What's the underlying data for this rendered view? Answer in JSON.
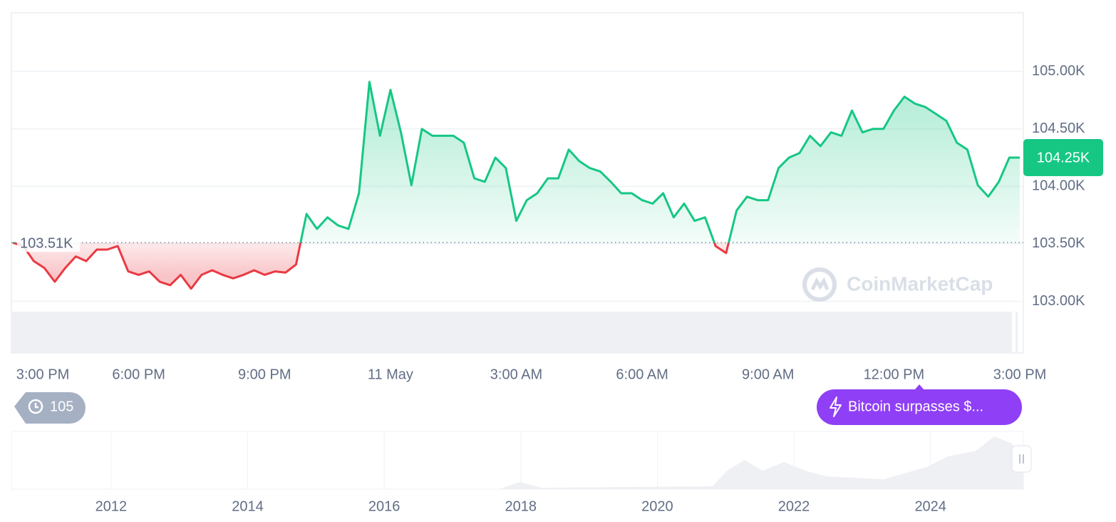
{
  "chart_data": {
    "type": "line",
    "ylim": [
      102.55,
      105.51
    ],
    "yticks": [
      {
        "value": 103,
        "label": "103.00K"
      },
      {
        "value": 103.5,
        "label": "103.50K"
      },
      {
        "value": 104,
        "label": "104.00K"
      },
      {
        "value": 104.5,
        "label": "104.50K"
      },
      {
        "value": 105,
        "label": "105.00K"
      }
    ],
    "xticks": [
      {
        "value": 0,
        "label": "3:00 PM"
      },
      {
        "value": 12,
        "label": "6:00 PM"
      },
      {
        "value": 24,
        "label": "9:00 PM"
      },
      {
        "value": 36,
        "label": "11 May"
      },
      {
        "value": 48,
        "label": "3:00 AM"
      },
      {
        "value": 60,
        "label": "6:00 AM"
      },
      {
        "value": 72,
        "label": "9:00 AM"
      },
      {
        "value": 84,
        "label": "12:00 PM"
      },
      {
        "value": 96,
        "label": "3:00 PM"
      }
    ],
    "grid": true,
    "up_color": "#16c784",
    "down_color": "#ea3943",
    "baseline": {
      "value": 103.51,
      "label": "103.51K"
    },
    "current_price": {
      "value": 104.25,
      "label": "104.25K"
    },
    "values": [
      103.51,
      103.48,
      103.35,
      103.29,
      103.17,
      103.29,
      103.39,
      103.35,
      103.45,
      103.45,
      103.48,
      103.26,
      103.23,
      103.26,
      103.17,
      103.14,
      103.23,
      103.11,
      103.23,
      103.27,
      103.23,
      103.2,
      103.23,
      103.27,
      103.23,
      103.26,
      103.25,
      103.32,
      103.76,
      103.63,
      103.73,
      103.66,
      103.63,
      103.94,
      104.91,
      104.44,
      104.84,
      104.47,
      104.01,
      104.5,
      104.44,
      104.44,
      104.44,
      104.38,
      104.07,
      104.04,
      104.25,
      104.16,
      103.7,
      103.88,
      103.94,
      104.07,
      104.07,
      104.32,
      104.22,
      104.16,
      104.13,
      104.04,
      103.94,
      103.94,
      103.88,
      103.85,
      103.94,
      103.73,
      103.85,
      103.7,
      103.73,
      103.48,
      103.42,
      103.79,
      103.91,
      103.88,
      103.88,
      104.16,
      104.25,
      104.29,
      104.44,
      104.35,
      104.47,
      104.44,
      104.66,
      104.47,
      104.5,
      104.5,
      104.66,
      104.78,
      104.72,
      104.69,
      104.63,
      104.57,
      104.38,
      104.32,
      104.01,
      103.91,
      104.04,
      104.25,
      104.25
    ],
    "watermark": "CoinMarketCap",
    "history_count": 105,
    "annotation": "Bitcoin surpasses $...",
    "navigator": {
      "xlim": [
        2010.54,
        2025.36
      ],
      "xticks": [
        2012,
        2014,
        2016,
        2018,
        2020,
        2022,
        2024
      ]
    }
  }
}
